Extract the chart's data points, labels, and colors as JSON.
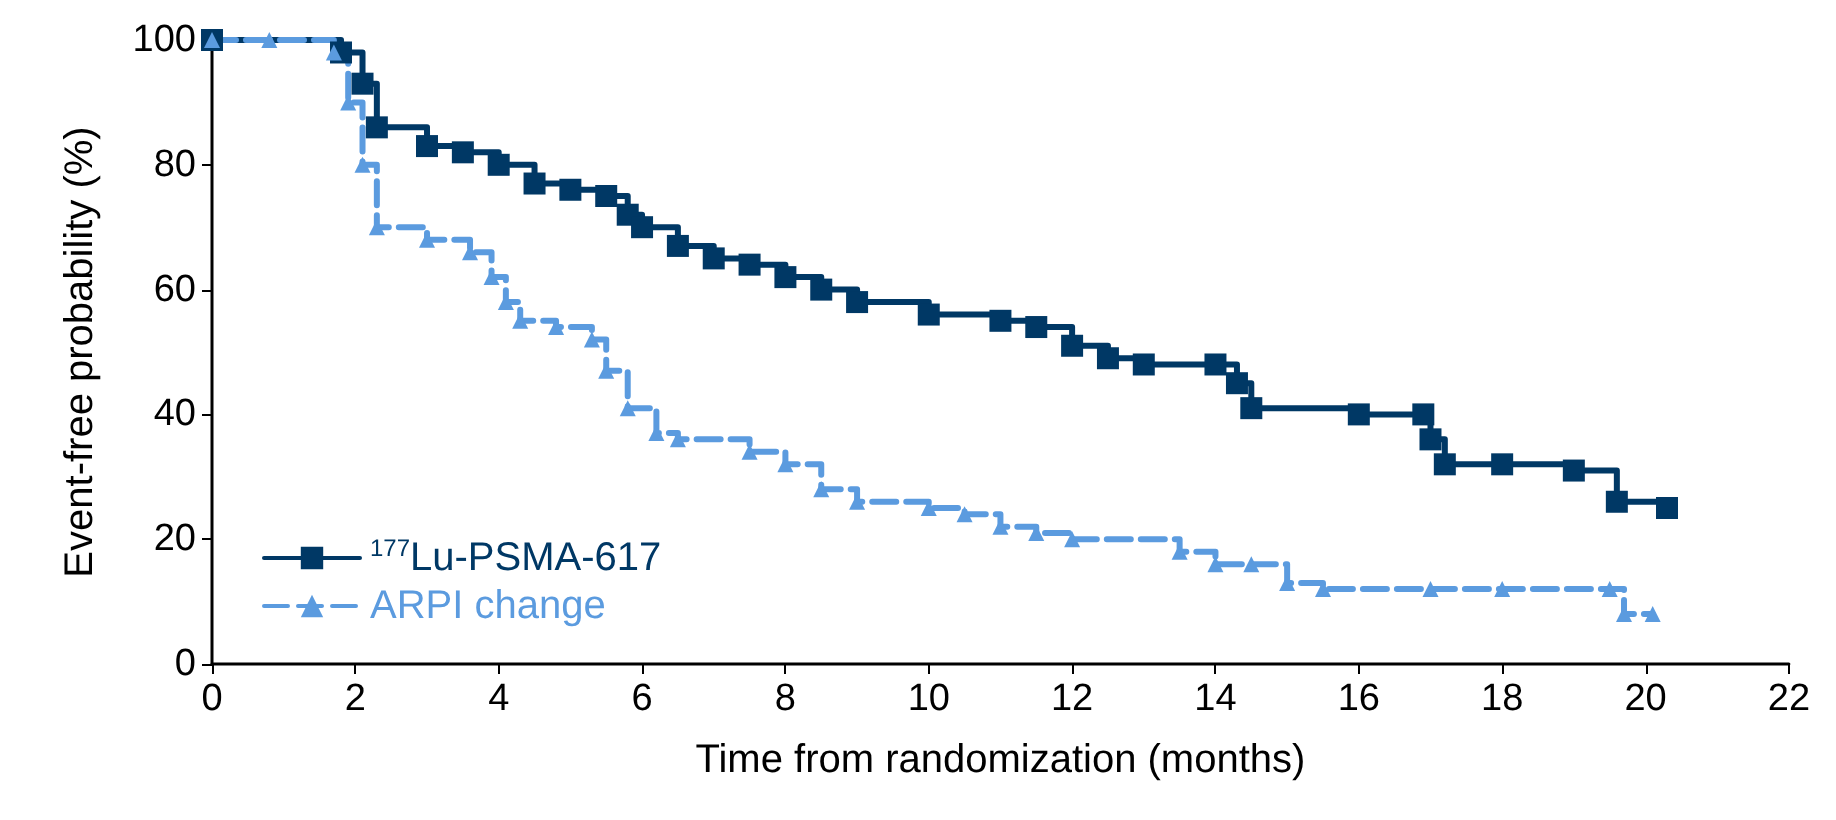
{
  "chart_data": {
    "type": "step",
    "xlabel": "Time from randomization (months)",
    "ylabel": "Event-free probability (%)",
    "xlim": [
      0,
      22
    ],
    "xticks": [
      0,
      2,
      4,
      6,
      8,
      10,
      12,
      14,
      16,
      18,
      20,
      22
    ],
    "ylim": [
      0,
      100
    ],
    "yticks": [
      0,
      20,
      40,
      60,
      80,
      100
    ],
    "grid": false,
    "legend": "bottom left",
    "series": [
      {
        "name": "$^{177}$Lu-PSMA-617",
        "color": "#003865",
        "marker": "square",
        "line_style": "solid",
        "x": [
          0,
          1.8,
          2.1,
          2.3,
          3,
          3.5,
          4,
          4.5,
          5,
          5.5,
          5.8,
          6,
          6.5,
          7,
          7.5,
          8,
          8.5,
          9,
          10,
          11,
          11.5,
          12,
          12.5,
          13,
          14,
          14.3,
          14.5,
          16,
          16.9,
          17,
          17.2,
          18,
          19,
          19.6,
          20.3
        ],
        "values": [
          100,
          98,
          93,
          86,
          83,
          82,
          80,
          77,
          76,
          75,
          72,
          70,
          67,
          65,
          64,
          62,
          60,
          58,
          56,
          55,
          54,
          51,
          49,
          48,
          48,
          45,
          41,
          40,
          40,
          36,
          32,
          32,
          31,
          26,
          25
        ]
      },
      {
        "name": "ARPI change",
        "color": "#5b9bdf",
        "marker": "triangle",
        "line_style": "dashed",
        "x": [
          0,
          0.8,
          1.7,
          1.9,
          2.1,
          2.3,
          3,
          3.6,
          3.9,
          4.1,
          4.3,
          4.8,
          5.3,
          5.5,
          5.8,
          6.2,
          6.5,
          7.5,
          8,
          8.5,
          9,
          10,
          10.5,
          11,
          11.5,
          12,
          13.5,
          14,
          14.5,
          15,
          15.5,
          17,
          18,
          19.5,
          19.7,
          20.1
        ],
        "values": [
          100,
          100,
          98,
          90,
          80,
          70,
          68,
          66,
          62,
          58,
          55,
          54,
          52,
          47,
          41,
          37,
          36,
          34,
          32,
          28,
          26,
          25,
          24,
          22,
          21,
          20,
          18,
          16,
          16,
          13,
          12,
          12,
          12,
          12,
          8,
          8
        ]
      }
    ]
  }
}
